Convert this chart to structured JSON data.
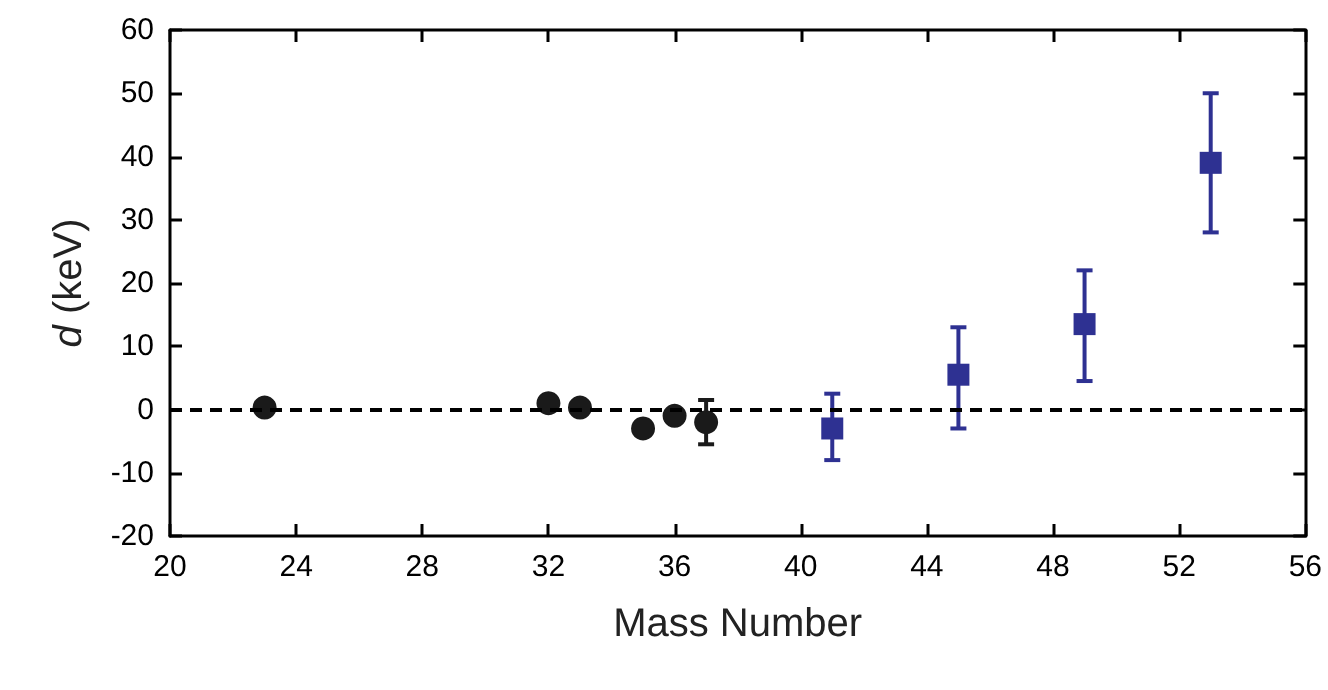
{
  "chart_data": {
    "type": "scatter",
    "xlabel": "Mass Number",
    "ylabel": "d (keV)",
    "xlim": [
      20,
      56
    ],
    "xticks": [
      20,
      24,
      28,
      32,
      36,
      40,
      44,
      48,
      52,
      56
    ],
    "ylim": [
      -20,
      60
    ],
    "yticks": [
      -20,
      -10,
      0,
      10,
      20,
      30,
      40,
      50,
      60
    ],
    "series": [
      {
        "color": "#1a1a1a",
        "marker": "circle",
        "x": [
          23,
          32,
          33,
          35,
          36,
          37
        ],
        "values": [
          0.3,
          1,
          0.3,
          -3,
          -1,
          -2
        ],
        "errors": [
          null,
          null,
          null,
          null,
          null,
          [
            -5.5,
            1.5
          ]
        ]
      },
      {
        "color": "#2e3192",
        "marker": "square",
        "x": [
          41,
          45,
          49,
          53
        ],
        "values": [
          -3,
          5.5,
          13.5,
          39
        ],
        "errors": [
          [
            -8,
            2.5
          ],
          [
            -3,
            13
          ],
          [
            4.5,
            22
          ],
          [
            28,
            50
          ]
        ]
      }
    ],
    "ref_lines": [
      {
        "axis": "y",
        "value": 0,
        "line_style": "dashed",
        "color": "#000000"
      }
    ],
    "grid": false
  }
}
